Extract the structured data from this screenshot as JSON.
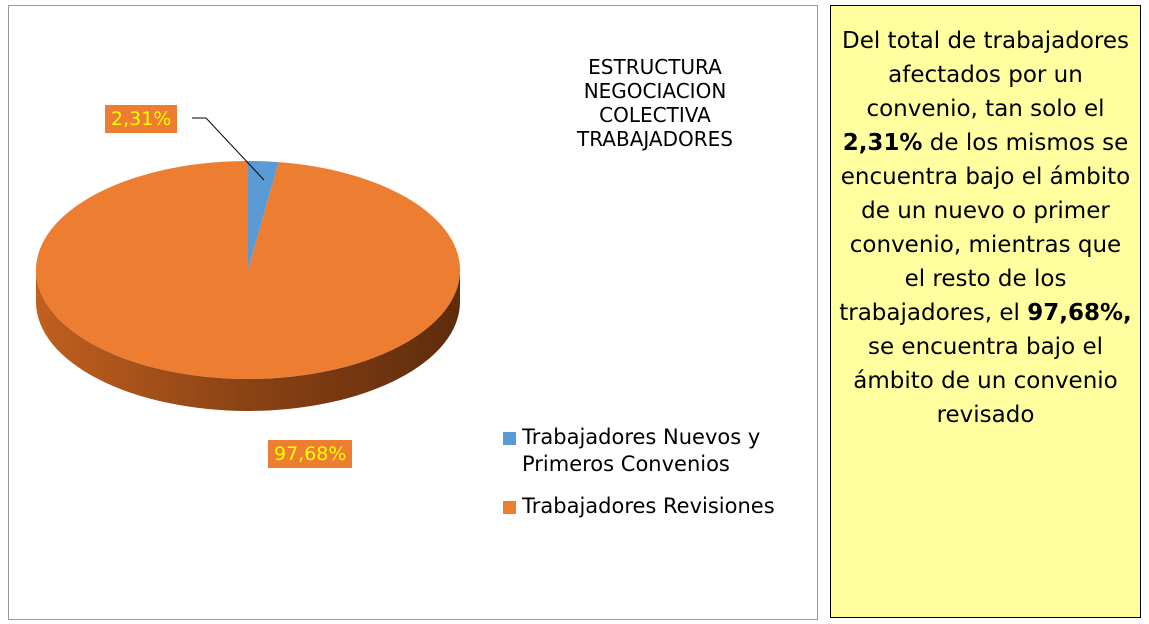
{
  "chart_data": {
    "type": "pie",
    "title": "ESTRUCTURA NEGOCIACION COLECTIVA TRABAJADORES",
    "categories": [
      "Trabajadores Nuevos y Primeros Convenios",
      "Trabajadores Revisiones"
    ],
    "values": [
      2.31,
      97.68
    ],
    "value_labels": [
      "2,31%",
      "97,68%"
    ],
    "colors": [
      "#5b9bd5",
      "#ed7d31"
    ],
    "legend": "right"
  },
  "note": {
    "segments": [
      {
        "text": "Del total de trabajadores afectados por un convenio, tan solo el ",
        "bold": false
      },
      {
        "text": "2,31%",
        "bold": true
      },
      {
        "text": " de los mismos se encuentra bajo el ámbito de un nuevo o primer convenio, mientras que el resto de los trabajadores, el ",
        "bold": false
      },
      {
        "text": "97,68%,",
        "bold": true
      },
      {
        "text": " se encuentra bajo el ámbito de un convenio revisado",
        "bold": false
      }
    ]
  }
}
